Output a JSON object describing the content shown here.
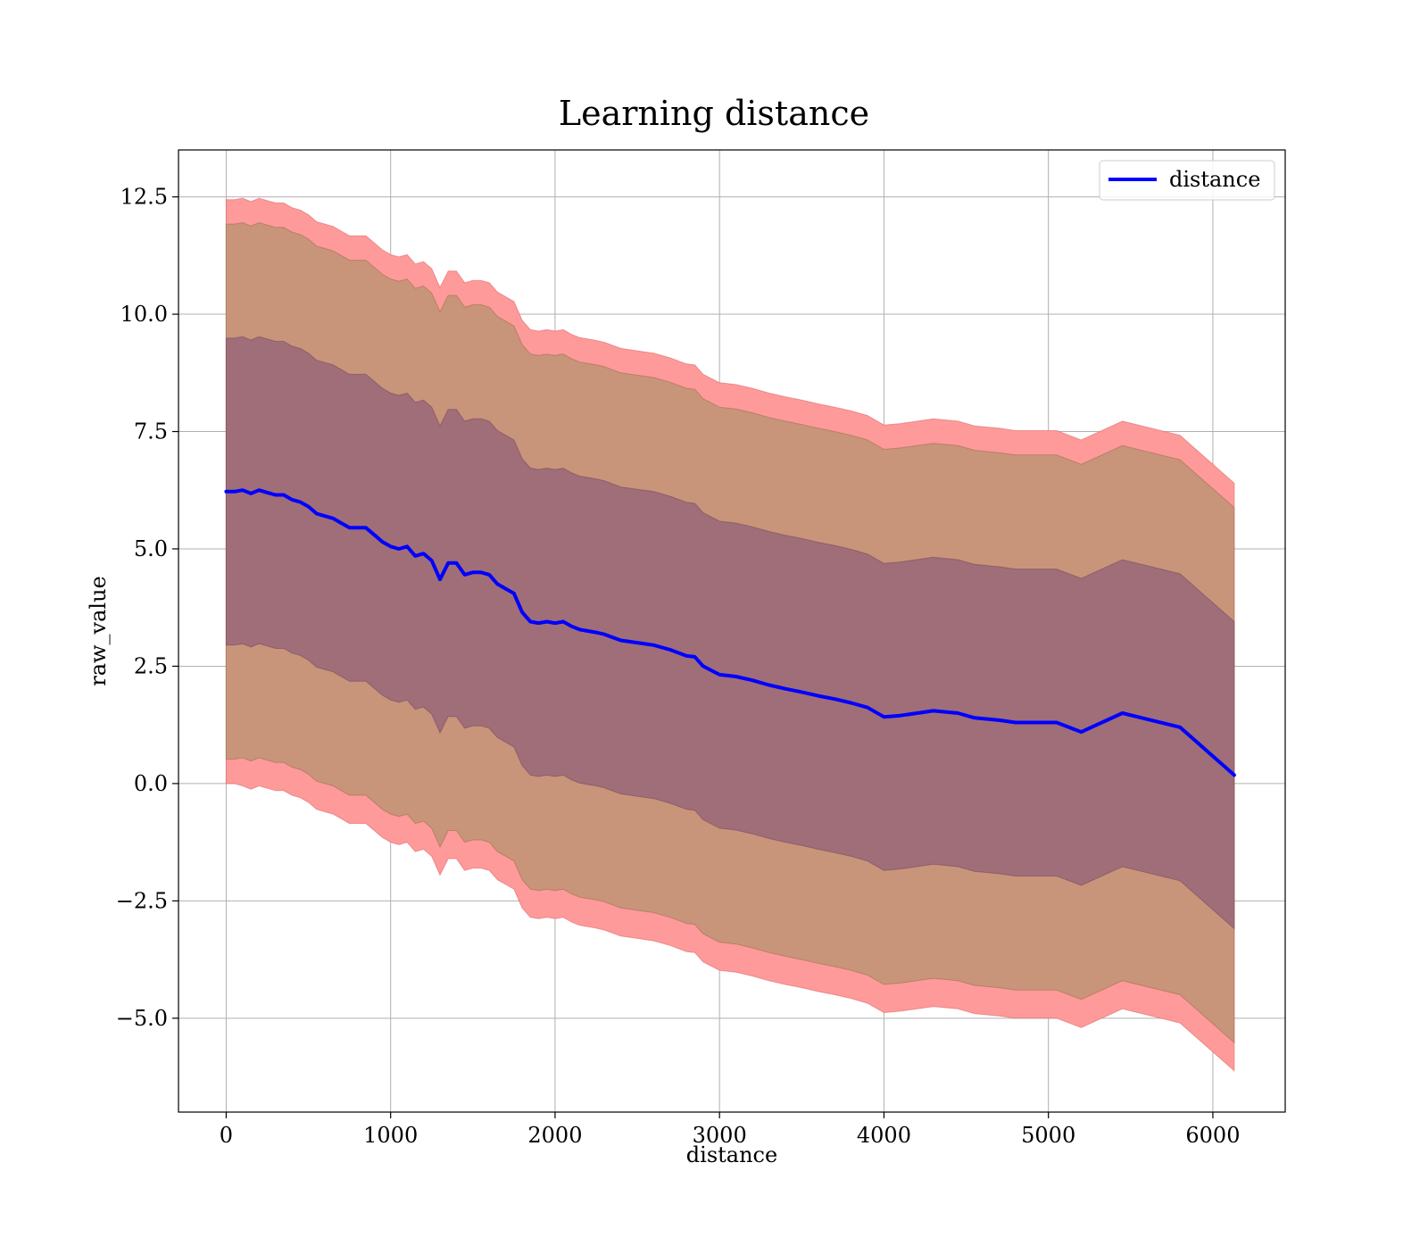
{
  "chart_data": {
    "type": "line",
    "title": "Learning distance",
    "xlabel": "distance",
    "ylabel": "raw_value",
    "xlim": [
      -290,
      6440
    ],
    "ylim": [
      -7.0,
      13.5
    ],
    "xticks": [
      0,
      1000,
      2000,
      3000,
      4000,
      5000,
      6000
    ],
    "xtick_labels": [
      "0",
      "1000",
      "2000",
      "3000",
      "4000",
      "5000",
      "6000"
    ],
    "yticks": [
      -5.0,
      -2.5,
      0.0,
      2.5,
      5.0,
      7.5,
      10.0,
      12.5
    ],
    "ytick_labels": [
      "−5.0",
      "−2.5",
      "0.0",
      "2.5",
      "5.0",
      "7.5",
      "10.0",
      "12.5"
    ],
    "grid": true,
    "legend": {
      "position": "top-right",
      "entries": [
        "distance"
      ]
    },
    "colors": {
      "line": "#0000ff",
      "band_outer": "#ff9a9a",
      "band_middle": "#c8957a",
      "band_inner": "#a06e78",
      "grid": "#b0b0b0"
    },
    "series": [
      {
        "name": "distance",
        "x": [
          0,
          50,
          100,
          150,
          200,
          250,
          300,
          350,
          400,
          450,
          500,
          550,
          600,
          650,
          700,
          750,
          800,
          850,
          900,
          950,
          1000,
          1050,
          1100,
          1150,
          1200,
          1250,
          1300,
          1350,
          1400,
          1450,
          1500,
          1550,
          1600,
          1650,
          1700,
          1750,
          1800,
          1850,
          1900,
          1950,
          2000,
          2050,
          2100,
          2150,
          2200,
          2250,
          2300,
          2400,
          2500,
          2600,
          2700,
          2800,
          2850,
          2900,
          3000,
          3100,
          3200,
          3300,
          3400,
          3500,
          3600,
          3700,
          3800,
          3900,
          4000,
          4100,
          4300,
          4450,
          4550,
          4700,
          4800,
          5050,
          5200,
          5450,
          5800,
          6130
        ],
        "values": [
          6.22,
          6.22,
          6.25,
          6.18,
          6.25,
          6.2,
          6.15,
          6.15,
          6.05,
          6.0,
          5.9,
          5.75,
          5.7,
          5.65,
          5.55,
          5.45,
          5.45,
          5.45,
          5.3,
          5.15,
          5.05,
          5.0,
          5.05,
          4.85,
          4.9,
          4.75,
          4.35,
          4.7,
          4.7,
          4.45,
          4.5,
          4.5,
          4.45,
          4.25,
          4.15,
          4.05,
          3.65,
          3.45,
          3.42,
          3.45,
          3.42,
          3.45,
          3.35,
          3.28,
          3.25,
          3.22,
          3.18,
          3.05,
          3.0,
          2.95,
          2.85,
          2.72,
          2.7,
          2.5,
          2.32,
          2.28,
          2.2,
          2.1,
          2.02,
          1.95,
          1.87,
          1.8,
          1.72,
          1.62,
          1.42,
          1.45,
          1.55,
          1.5,
          1.4,
          1.35,
          1.3,
          1.3,
          1.1,
          1.5,
          1.2,
          0.18
        ]
      }
    ],
    "bands": [
      {
        "lower": [
          0.0,
          0.0,
          -0.05,
          -0.12,
          -0.05,
          -0.1,
          -0.15,
          -0.15,
          -0.25,
          -0.3,
          -0.4,
          -0.55,
          -0.6,
          -0.65,
          -0.75,
          -0.85,
          -0.85,
          -0.85,
          -1.0,
          -1.15,
          -1.25,
          -1.3,
          -1.25,
          -1.45,
          -1.4,
          -1.55,
          -1.95,
          -1.6,
          -1.6,
          -1.85,
          -1.8,
          -1.8,
          -1.85,
          -2.05,
          -2.15,
          -2.25,
          -2.65,
          -2.85,
          -2.88,
          -2.85,
          -2.88,
          -2.85,
          -2.95,
          -3.02,
          -3.05,
          -3.08,
          -3.12,
          -3.25,
          -3.3,
          -3.35,
          -3.45,
          -3.58,
          -3.6,
          -3.8,
          -3.98,
          -4.02,
          -4.1,
          -4.2,
          -4.28,
          -4.35,
          -4.43,
          -4.5,
          -4.58,
          -4.68,
          -4.88,
          -4.85,
          -4.75,
          -4.8,
          -4.9,
          -4.95,
          -5.0,
          -5.0,
          -5.2,
          -4.8,
          -5.1,
          -6.12
        ],
        "upper": [
          12.44,
          12.44,
          12.47,
          12.4,
          12.47,
          12.42,
          12.37,
          12.37,
          12.27,
          12.22,
          12.12,
          11.97,
          11.92,
          11.87,
          11.77,
          11.67,
          11.67,
          11.67,
          11.52,
          11.37,
          11.27,
          11.22,
          11.27,
          11.07,
          11.12,
          10.97,
          10.57,
          10.92,
          10.92,
          10.67,
          10.72,
          10.72,
          10.67,
          10.47,
          10.37,
          10.27,
          9.87,
          9.67,
          9.64,
          9.67,
          9.64,
          9.67,
          9.57,
          9.5,
          9.47,
          9.44,
          9.4,
          9.27,
          9.22,
          9.17,
          9.07,
          8.94,
          8.92,
          8.72,
          8.54,
          8.5,
          8.42,
          8.32,
          8.24,
          8.17,
          8.09,
          8.02,
          7.94,
          7.84,
          7.64,
          7.67,
          7.77,
          7.72,
          7.62,
          7.57,
          7.52,
          7.52,
          7.32,
          7.72,
          7.42,
          6.4
        ]
      },
      {
        "lower": [
          0.52,
          0.52,
          0.55,
          0.48,
          0.55,
          0.5,
          0.45,
          0.45,
          0.35,
          0.3,
          0.2,
          0.05,
          0.0,
          -0.05,
          -0.15,
          -0.25,
          -0.25,
          -0.25,
          -0.4,
          -0.55,
          -0.65,
          -0.7,
          -0.65,
          -0.85,
          -0.8,
          -0.95,
          -1.35,
          -1.0,
          -1.0,
          -1.25,
          -1.2,
          -1.2,
          -1.25,
          -1.45,
          -1.55,
          -1.65,
          -2.05,
          -2.25,
          -2.28,
          -2.25,
          -2.28,
          -2.25,
          -2.35,
          -2.42,
          -2.45,
          -2.48,
          -2.52,
          -2.65,
          -2.7,
          -2.75,
          -2.85,
          -2.98,
          -3.0,
          -3.2,
          -3.38,
          -3.42,
          -3.5,
          -3.6,
          -3.68,
          -3.75,
          -3.83,
          -3.9,
          -3.98,
          -4.08,
          -4.28,
          -4.25,
          -4.15,
          -4.2,
          -4.3,
          -4.35,
          -4.4,
          -4.4,
          -4.6,
          -4.2,
          -4.5,
          -5.52
        ],
        "upper": [
          11.92,
          11.92,
          11.95,
          11.88,
          11.95,
          11.9,
          11.85,
          11.85,
          11.75,
          11.7,
          11.6,
          11.45,
          11.4,
          11.35,
          11.25,
          11.15,
          11.15,
          11.15,
          11.0,
          10.85,
          10.75,
          10.7,
          10.75,
          10.55,
          10.6,
          10.45,
          10.05,
          10.4,
          10.4,
          10.15,
          10.2,
          10.2,
          10.15,
          9.95,
          9.85,
          9.75,
          9.35,
          9.15,
          9.12,
          9.15,
          9.12,
          9.15,
          9.05,
          8.98,
          8.95,
          8.92,
          8.88,
          8.75,
          8.7,
          8.65,
          8.55,
          8.42,
          8.4,
          8.2,
          8.02,
          7.98,
          7.9,
          7.8,
          7.72,
          7.65,
          7.57,
          7.5,
          7.42,
          7.32,
          7.12,
          7.15,
          7.25,
          7.2,
          7.1,
          7.05,
          7.0,
          7.0,
          6.8,
          7.2,
          6.9,
          5.88
        ]
      },
      {
        "lower": [
          2.95,
          2.95,
          2.98,
          2.91,
          2.98,
          2.93,
          2.88,
          2.88,
          2.78,
          2.73,
          2.63,
          2.48,
          2.43,
          2.38,
          2.28,
          2.18,
          2.18,
          2.18,
          2.03,
          1.88,
          1.78,
          1.73,
          1.78,
          1.58,
          1.63,
          1.48,
          1.08,
          1.43,
          1.43,
          1.18,
          1.23,
          1.23,
          1.18,
          0.98,
          0.88,
          0.78,
          0.38,
          0.18,
          0.15,
          0.18,
          0.15,
          0.18,
          0.08,
          0.01,
          -0.02,
          -0.05,
          -0.09,
          -0.22,
          -0.27,
          -0.32,
          -0.42,
          -0.55,
          -0.57,
          -0.77,
          -0.95,
          -0.99,
          -1.07,
          -1.17,
          -1.25,
          -1.32,
          -1.4,
          -1.47,
          -1.55,
          -1.65,
          -1.85,
          -1.82,
          -1.72,
          -1.77,
          -1.87,
          -1.92,
          -1.97,
          -1.97,
          -2.17,
          -1.77,
          -2.07,
          -3.09
        ],
        "upper": [
          9.49,
          9.49,
          9.52,
          9.45,
          9.52,
          9.47,
          9.42,
          9.42,
          9.32,
          9.27,
          9.17,
          9.02,
          8.97,
          8.92,
          8.82,
          8.72,
          8.72,
          8.72,
          8.57,
          8.42,
          8.32,
          8.27,
          8.32,
          8.12,
          8.17,
          8.02,
          7.62,
          7.97,
          7.97,
          7.72,
          7.77,
          7.77,
          7.72,
          7.52,
          7.42,
          7.32,
          6.92,
          6.72,
          6.69,
          6.72,
          6.69,
          6.72,
          6.62,
          6.55,
          6.52,
          6.49,
          6.45,
          6.32,
          6.27,
          6.22,
          6.12,
          5.99,
          5.97,
          5.77,
          5.59,
          5.55,
          5.47,
          5.37,
          5.29,
          5.22,
          5.14,
          5.07,
          4.99,
          4.89,
          4.69,
          4.72,
          4.82,
          4.77,
          4.67,
          4.62,
          4.57,
          4.57,
          4.37,
          4.77,
          4.47,
          3.45
        ]
      }
    ]
  }
}
